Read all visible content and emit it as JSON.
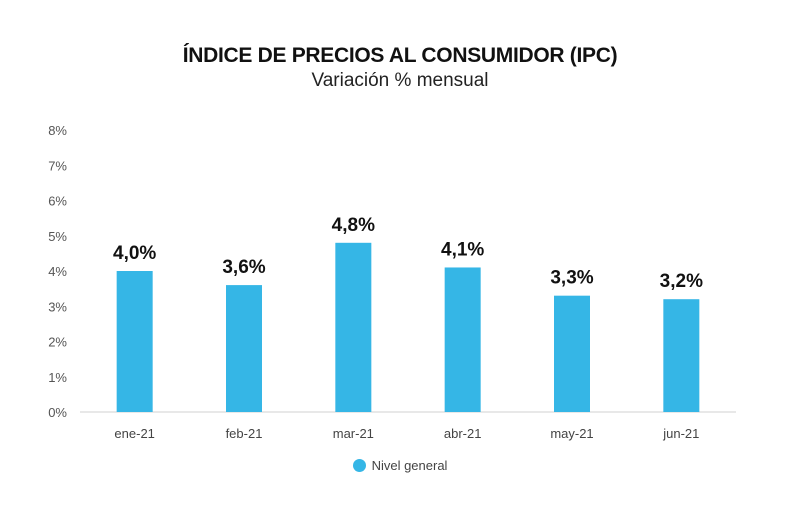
{
  "chart_data": {
    "type": "bar",
    "title": "ÍNDICE DE PRECIOS AL CONSUMIDOR (IPC)",
    "subtitle": "Variación % mensual",
    "categories": [
      "ene-21",
      "feb-21",
      "mar-21",
      "abr-21",
      "may-21",
      "jun-21"
    ],
    "series": [
      {
        "name": "Nivel general",
        "values": [
          4.0,
          3.6,
          4.8,
          4.1,
          3.3,
          3.2
        ],
        "color": "#35b6e6"
      }
    ],
    "data_labels": [
      "4,0%",
      "3,6%",
      "4,8%",
      "4,1%",
      "3,3%",
      "3,2%"
    ],
    "yticks": [
      "0%",
      "1%",
      "2%",
      "3%",
      "4%",
      "5%",
      "6%",
      "7%",
      "8%"
    ],
    "ylim": [
      0,
      8
    ],
    "xlabel": "",
    "ylabel": "",
    "grid": false,
    "legend": "bottom-center"
  }
}
